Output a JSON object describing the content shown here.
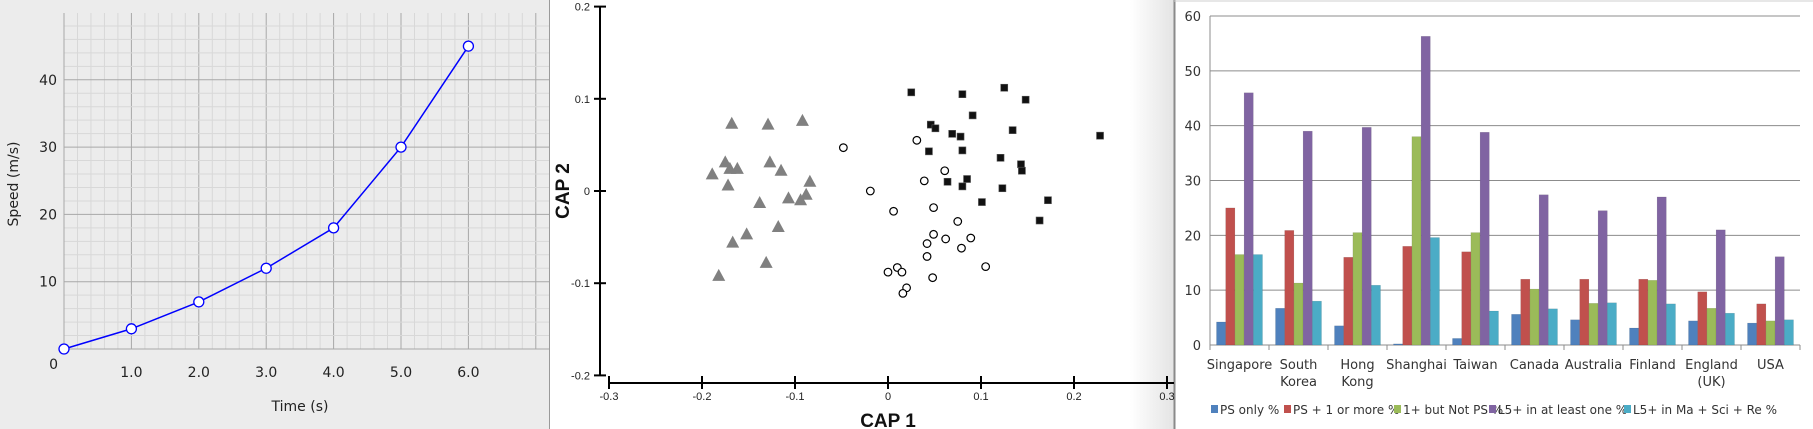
{
  "chart_data": [
    {
      "type": "line",
      "title": "",
      "xlabel": "Time (s)",
      "ylabel": "Speed (m/s)",
      "xlim": [
        0,
        7
      ],
      "ylim": [
        0,
        50
      ],
      "x_ticks": [
        "1.0",
        "2.0",
        "3.0",
        "4.0",
        "5.0",
        "6.0"
      ],
      "x_tick_values": [
        1,
        2,
        3,
        4,
        5,
        6
      ],
      "y_ticks": [
        "0",
        "10",
        "20",
        "30",
        "40"
      ],
      "y_tick_values": [
        0,
        10,
        20,
        30,
        40
      ],
      "grid": true,
      "series": [
        {
          "name": "Speed",
          "color": "#0000ff",
          "x": [
            0,
            1,
            2,
            3,
            4,
            5,
            6
          ],
          "y": [
            0,
            3,
            7,
            12,
            18,
            30,
            45
          ]
        }
      ]
    },
    {
      "type": "scatter",
      "title": "",
      "xlabel": "CAP 1",
      "ylabel": "CAP 2",
      "xlim": [
        -0.3,
        0.3
      ],
      "ylim": [
        -0.2,
        0.2
      ],
      "x_ticks": [
        "-0.3",
        "-0.2",
        "-0.1",
        "0",
        "0.1",
        "0.2",
        "0.3"
      ],
      "x_tick_values": [
        -0.3,
        -0.2,
        -0.1,
        0,
        0.1,
        0.2,
        0.3
      ],
      "y_ticks": [
        "0.2",
        "0.1",
        "0",
        "-0.1",
        "-0.2"
      ],
      "y_tick_values": [
        0.2,
        0.1,
        0,
        -0.1,
        -0.2
      ],
      "grid": false,
      "series": [
        {
          "name": "triangles",
          "marker": "triangle",
          "color": "#808080",
          "points": [
            [
              -0.168,
              0.073
            ],
            [
              -0.129,
              0.072
            ],
            [
              -0.092,
              0.076
            ],
            [
              -0.175,
              0.031
            ],
            [
              -0.17,
              0.024
            ],
            [
              -0.162,
              0.024
            ],
            [
              -0.189,
              0.018
            ],
            [
              -0.127,
              0.031
            ],
            [
              -0.115,
              0.022
            ],
            [
              -0.172,
              0.006
            ],
            [
              -0.084,
              0.01
            ],
            [
              -0.138,
              -0.013
            ],
            [
              -0.107,
              -0.008
            ],
            [
              -0.094,
              -0.01
            ],
            [
              -0.088,
              -0.004
            ],
            [
              -0.118,
              -0.039
            ],
            [
              -0.152,
              -0.047
            ],
            [
              -0.167,
              -0.056
            ],
            [
              -0.131,
              -0.078
            ],
            [
              -0.182,
              -0.092
            ]
          ]
        },
        {
          "name": "circles",
          "marker": "open-circle",
          "color": "#000000",
          "points": [
            [
              -0.048,
              0.047
            ],
            [
              -0.019,
              0.0
            ],
            [
              0.031,
              0.055
            ],
            [
              0.061,
              0.022
            ],
            [
              0.039,
              0.011
            ],
            [
              0.006,
              -0.022
            ],
            [
              0.049,
              -0.018
            ],
            [
              0.075,
              -0.033
            ],
            [
              0.049,
              -0.047
            ],
            [
              0.062,
              -0.052
            ],
            [
              0.089,
              -0.051
            ],
            [
              0.042,
              -0.057
            ],
            [
              0.079,
              -0.062
            ],
            [
              0.042,
              -0.071
            ],
            [
              0.105,
              -0.082
            ],
            [
              0.0,
              -0.088
            ],
            [
              0.01,
              -0.083
            ],
            [
              0.015,
              -0.088
            ],
            [
              0.048,
              -0.094
            ],
            [
              0.02,
              -0.105
            ],
            [
              0.016,
              -0.111
            ]
          ]
        },
        {
          "name": "squares",
          "marker": "square",
          "color": "#000000",
          "points": [
            [
              0.025,
              0.107
            ],
            [
              0.08,
              0.105
            ],
            [
              0.091,
              0.082
            ],
            [
              0.046,
              0.072
            ],
            [
              0.051,
              0.068
            ],
            [
              0.069,
              0.062
            ],
            [
              0.078,
              0.059
            ],
            [
              0.044,
              0.043
            ],
            [
              0.08,
              0.044
            ],
            [
              0.064,
              0.01
            ],
            [
              0.085,
              0.013
            ],
            [
              0.08,
              0.005
            ],
            [
              0.101,
              -0.012
            ],
            [
              0.123,
              0.003
            ],
            [
              0.121,
              0.036
            ],
            [
              0.125,
              0.112
            ],
            [
              0.134,
              0.066
            ],
            [
              0.148,
              0.099
            ],
            [
              0.228,
              0.06
            ],
            [
              0.143,
              0.029
            ],
            [
              0.144,
              0.022
            ],
            [
              0.172,
              -0.01
            ],
            [
              0.163,
              -0.032
            ]
          ]
        }
      ]
    },
    {
      "type": "bar",
      "title": "",
      "xlabel": "",
      "ylabel": "",
      "ylim": [
        0,
        60
      ],
      "y_ticks": [
        "0",
        "10",
        "20",
        "30",
        "40",
        "50",
        "60"
      ],
      "y_tick_values": [
        0,
        10,
        20,
        30,
        40,
        50,
        60
      ],
      "grid": true,
      "legend_position": "bottom",
      "categories": [
        [
          "Singapore"
        ],
        [
          "South",
          "Korea"
        ],
        [
          "Hong",
          "Kong"
        ],
        [
          "Shanghai"
        ],
        [
          "Taiwan"
        ],
        [
          "Canada"
        ],
        [
          "Australia"
        ],
        [
          "Finland"
        ],
        [
          "England",
          "(UK)"
        ],
        [
          "USA"
        ]
      ],
      "series": [
        {
          "name": "PS only %",
          "color": "#4f81bd",
          "values": [
            4.2,
            6.7,
            3.5,
            0.2,
            1.2,
            5.6,
            4.6,
            3.1,
            4.4,
            4.0
          ]
        },
        {
          "name": "PS + 1  or more %",
          "color": "#c0504d",
          "values": [
            25,
            20.9,
            16,
            18,
            17,
            12,
            12,
            12,
            9.7,
            7.5
          ]
        },
        {
          "name": "1+ but Not PS %",
          "color": "#9bbb59",
          "values": [
            16.5,
            11.3,
            20.5,
            38,
            20.5,
            10.2,
            7.6,
            11.8,
            6.7,
            4.4
          ]
        },
        {
          "name": "L5+ in at  least one  %",
          "color": "#8064a2",
          "values": [
            46,
            39,
            39.7,
            56.3,
            38.8,
            27.4,
            24.5,
            27,
            21,
            16.1
          ]
        },
        {
          "name": "L5+ in Ma +  Sci + Re  %",
          "color": "#4bacc6",
          "values": [
            16.5,
            8,
            10.9,
            19.6,
            6.2,
            6.6,
            7.7,
            7.5,
            5.8,
            4.6
          ]
        }
      ]
    }
  ]
}
